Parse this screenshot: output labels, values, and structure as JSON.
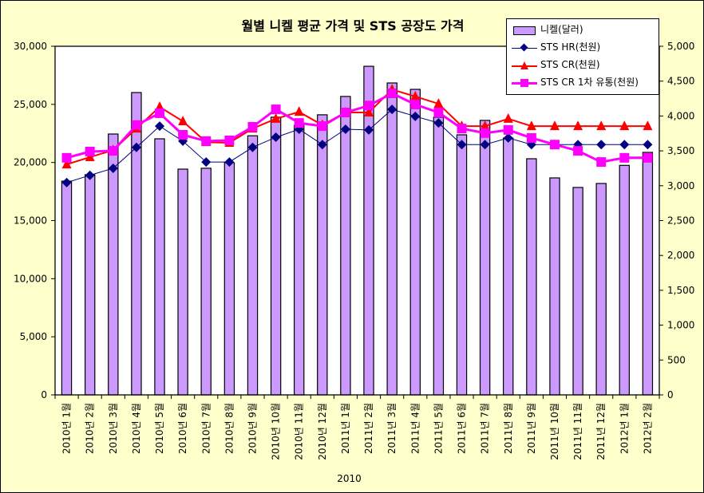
{
  "chart_data": {
    "type": "bar+line",
    "title": "월별 니켈 평균 가격 및 STS 공장도 가격",
    "xlabel": "2010",
    "ylabel_left": "",
    "ylabel_right": "",
    "ylim_left": [
      0,
      30000
    ],
    "ylim_right": [
      0,
      5000
    ],
    "yticks_left": [
      "0",
      "5,000",
      "10,000",
      "15,000",
      "20,000",
      "25,000",
      "30,000"
    ],
    "yticks_right": [
      "0",
      "500",
      "1,000",
      "1,500",
      "2,000",
      "2,500",
      "3,000",
      "3,500",
      "4,000",
      "4,500",
      "5,000"
    ],
    "grid": false,
    "legend_position": "top-right",
    "categories": [
      "2010년 1월",
      "2010년 2월",
      "2010년 3월",
      "2010년 4월",
      "2010년 5월",
      "2010년 6월",
      "2010년 7월",
      "2010년 8월",
      "2010년 9월",
      "2010년 10월",
      "2010년 11월",
      "2010년 12월",
      "2011년 1월",
      "2011년 2월",
      "2011년 3월",
      "2011년 4월",
      "2011년 5월",
      "2011년 6월",
      "2011년 7월",
      "2011년 8월",
      "2011년 9월",
      "2011년 10월",
      "2011년 11월",
      "2011년 12월",
      "2012년 1월",
      "2012년 2월"
    ],
    "series": [
      {
        "name": "니켈(달러)",
        "type": "bar",
        "axis": "left",
        "color": "#CC99FF",
        "values": [
          18400,
          18950,
          22450,
          26020,
          22040,
          19430,
          19500,
          19980,
          22300,
          23900,
          23200,
          24100,
          25680,
          28280,
          26840,
          26290,
          23900,
          22380,
          23620,
          22100,
          20320,
          18670,
          17850,
          18190,
          19750,
          20870
        ]
      },
      {
        "name": "STS HR(천원)",
        "type": "line",
        "axis": "right",
        "color": "#000080",
        "marker": "diamond",
        "values": [
          3045,
          3150,
          3250,
          3550,
          3855,
          3640,
          3340,
          3340,
          3550,
          3695,
          3810,
          3590,
          3810,
          3800,
          4095,
          3995,
          3900,
          3590,
          3590,
          3685,
          3590,
          3590,
          3590,
          3590,
          3590,
          3590
        ]
      },
      {
        "name": "STS CR(천원)",
        "type": "line",
        "axis": "right",
        "color": "#FF0000",
        "marker": "triangle",
        "values": [
          3305,
          3410,
          3510,
          3820,
          4130,
          3925,
          3625,
          3615,
          3820,
          3960,
          4060,
          3870,
          4050,
          4050,
          4380,
          4280,
          4175,
          3855,
          3855,
          3960,
          3855,
          3855,
          3855,
          3855,
          3855,
          3855
        ]
      },
      {
        "name": "STS CR 1차 유통(천원)",
        "type": "line",
        "axis": "right",
        "color": "#FF00FF",
        "marker": "square",
        "values": [
          3400,
          3490,
          3500,
          3870,
          4040,
          3730,
          3640,
          3650,
          3845,
          4095,
          3900,
          3855,
          4050,
          4150,
          4325,
          4165,
          4050,
          3820,
          3755,
          3800,
          3685,
          3590,
          3500,
          3340,
          3400,
          3400
        ]
      }
    ]
  }
}
